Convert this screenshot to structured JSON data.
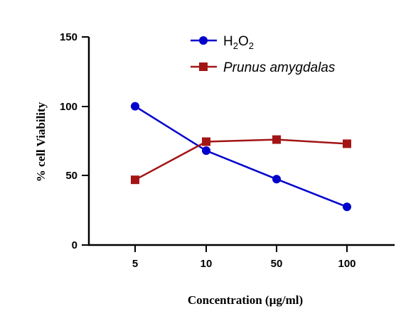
{
  "chart_data": {
    "type": "line",
    "title": "",
    "xlabel": "Concentration (µg/ml)",
    "ylabel": "% cell Viability",
    "categories": [
      "5",
      "10",
      "50",
      "100"
    ],
    "ylim": [
      0,
      150
    ],
    "yticks": [
      "0",
      "50",
      "100",
      "150"
    ],
    "grid": false,
    "legend_position": "top",
    "series": [
      {
        "name": "H2O2",
        "legend": {
          "base": "H",
          "sub1": "2",
          "mid": "O",
          "sub2": "2"
        },
        "marker": "circle",
        "color": "#0000cc",
        "values": [
          100,
          68,
          47.5,
          27.5
        ]
      },
      {
        "name": "Prunus amygdalas",
        "marker": "square",
        "color": "#a31515",
        "values": [
          47,
          74.5,
          76,
          73
        ]
      }
    ]
  }
}
